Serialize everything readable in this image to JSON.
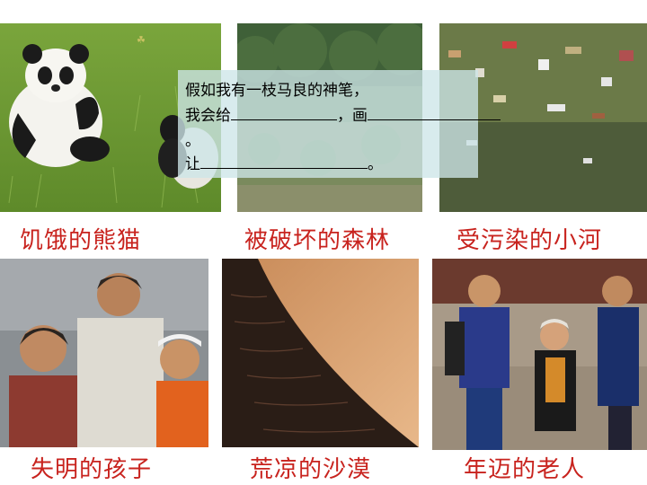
{
  "captions": {
    "panda": "饥饿的熊猫",
    "forest": "被破坏的森林",
    "river": "受污染的小河",
    "kids": "失明的孩子",
    "desert": "荒凉的沙漠",
    "elderly": "年迈的老人"
  },
  "overlay": {
    "line1": "假如我有一枝马良的神笔，",
    "line2_prefix": "我会给",
    "line2_comma": "，画",
    "line3": "。",
    "line4_prefix": "让",
    "line4_suffix": "。"
  },
  "colors": {
    "caption": "#c8231e",
    "overlay_bg": "#cde6e8"
  }
}
